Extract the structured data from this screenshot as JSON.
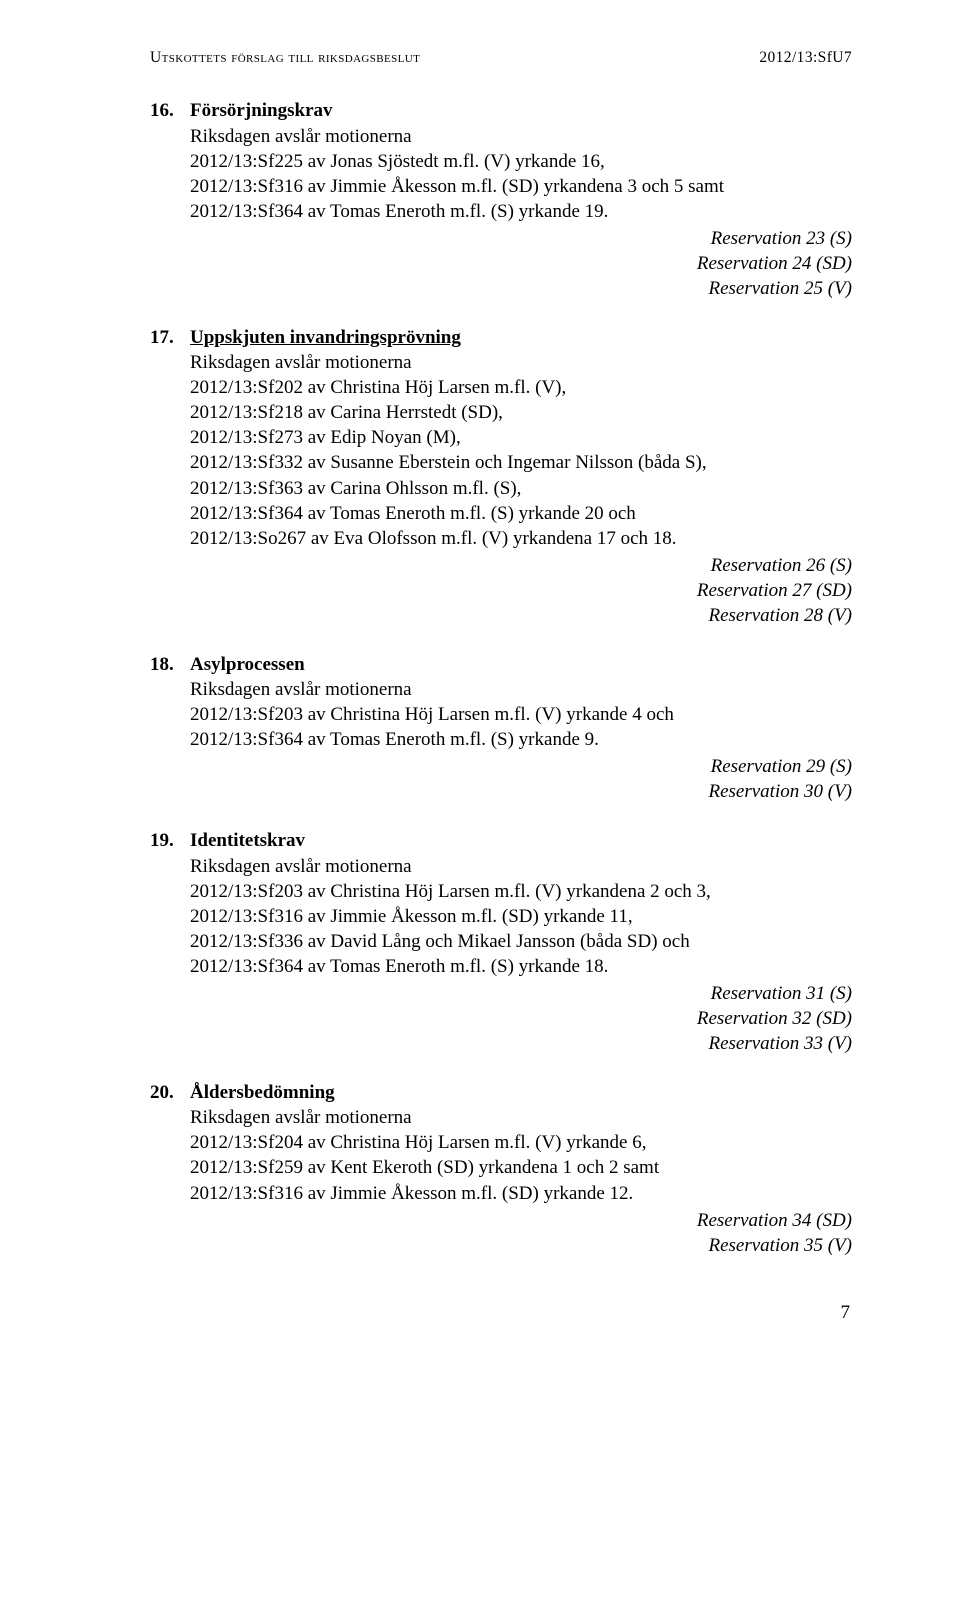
{
  "header": {
    "left": "Utskottets förslag till riksdagsbeslut",
    "right": "2012/13:SfU7"
  },
  "items": [
    {
      "num": "16.",
      "title": "Försörjningskrav",
      "underline": false,
      "lines": [
        "Riksdagen avslår motionerna",
        "2012/13:Sf225 av Jonas Sjöstedt m.fl. (V) yrkande 16,",
        "2012/13:Sf316 av Jimmie Åkesson m.fl. (SD) yrkandena 3 och 5 samt",
        "2012/13:Sf364 av Tomas Eneroth m.fl. (S) yrkande 19."
      ],
      "reservations": [
        "Reservation 23 (S)",
        "Reservation 24 (SD)",
        "Reservation 25 (V)"
      ]
    },
    {
      "num": "17.",
      "title": "Uppskjuten invandringsprövning",
      "underline": true,
      "lines": [
        "Riksdagen avslår motionerna",
        "2012/13:Sf202 av Christina Höj Larsen m.fl. (V),",
        "2012/13:Sf218 av Carina Herrstedt (SD),",
        "2012/13:Sf273 av Edip Noyan (M),",
        "2012/13:Sf332 av Susanne Eberstein och Ingemar Nilsson (båda S),",
        "2012/13:Sf363 av Carina Ohlsson m.fl. (S),",
        "2012/13:Sf364 av Tomas Eneroth m.fl. (S) yrkande 20 och",
        "2012/13:So267 av Eva Olofsson m.fl. (V) yrkandena 17 och 18."
      ],
      "reservations": [
        "Reservation 26 (S)",
        "Reservation 27 (SD)",
        "Reservation 28 (V)"
      ]
    },
    {
      "num": "18.",
      "title": "Asylprocessen",
      "underline": false,
      "lines": [
        "Riksdagen avslår motionerna",
        "2012/13:Sf203 av Christina Höj Larsen m.fl. (V) yrkande 4 och",
        "2012/13:Sf364 av Tomas Eneroth m.fl. (S) yrkande 9."
      ],
      "reservations": [
        "Reservation 29 (S)",
        "Reservation 30 (V)"
      ]
    },
    {
      "num": "19.",
      "title": "Identitetskrav",
      "underline": false,
      "lines": [
        "Riksdagen avslår motionerna",
        "2012/13:Sf203 av Christina Höj Larsen m.fl. (V) yrkandena 2 och 3,",
        "2012/13:Sf316 av Jimmie Åkesson m.fl. (SD) yrkande 11,",
        "2012/13:Sf336 av David Lång och Mikael Jansson (båda SD) och",
        "2012/13:Sf364 av Tomas Eneroth m.fl. (S) yrkande 18."
      ],
      "reservations": [
        "Reservation 31 (S)",
        "Reservation 32 (SD)",
        "Reservation 33 (V)"
      ]
    },
    {
      "num": "20.",
      "title": "Åldersbedömning",
      "underline": false,
      "lines": [
        "Riksdagen avslår motionerna",
        "2012/13:Sf204 av Christina Höj Larsen m.fl. (V) yrkande 6,",
        "2012/13:Sf259 av Kent Ekeroth (SD) yrkandena 1 och 2 samt",
        "2012/13:Sf316 av Jimmie Åkesson m.fl. (SD) yrkande 12."
      ],
      "reservations": [
        "Reservation 34 (SD)",
        "Reservation 35 (V)"
      ]
    }
  ],
  "pageNumber": "7"
}
